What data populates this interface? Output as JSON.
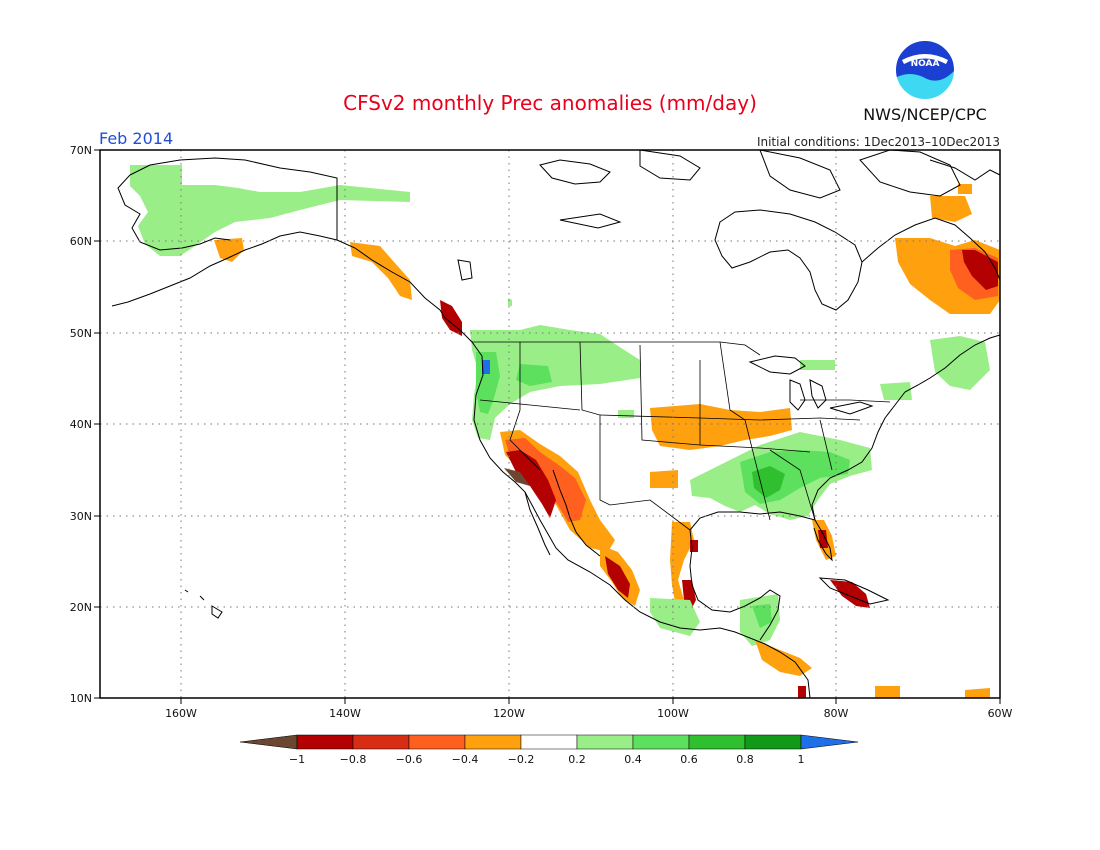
{
  "header": {
    "title": "CFSv2 monthly Prec anomalies (mm/day)",
    "month": "Feb 2014",
    "initial_conditions": "Initial conditions: 1Dec2013–10Dec2013",
    "org": "NWS/NCEP/CPC",
    "logo_text": "NOAA"
  },
  "map": {
    "lat_labels": [
      "70N",
      "60N",
      "50N",
      "40N",
      "30N",
      "20N",
      "10N"
    ],
    "lon_labels": [
      "160W",
      "140W",
      "120W",
      "100W",
      "80W",
      "60W"
    ]
  },
  "colorbar": {
    "labels": [
      "−1",
      "−0.8",
      "−0.6",
      "−0.4",
      "−0.2",
      "0.2",
      "0.4",
      "0.6",
      "0.8",
      "1"
    ],
    "colors": [
      "#6b4631",
      "#b30000",
      "#d62d14",
      "#ff5f1f",
      "#ffa10f",
      "#ffffff",
      "#99ee87",
      "#5de05d",
      "#2fbf2f",
      "#119a19",
      "#1f6fe8"
    ]
  },
  "colors": {
    "dry_strong": "#b30000",
    "dry_medium": "#d62d14",
    "dry_light": "#ff5f1f",
    "dry_weak": "#ffa10f",
    "dry_extreme": "#6b4631",
    "wet_weak": "#99ee87",
    "wet_light": "#5de05d",
    "wet_medium": "#2fbf2f",
    "wet_extreme": "#1f6fe8"
  }
}
